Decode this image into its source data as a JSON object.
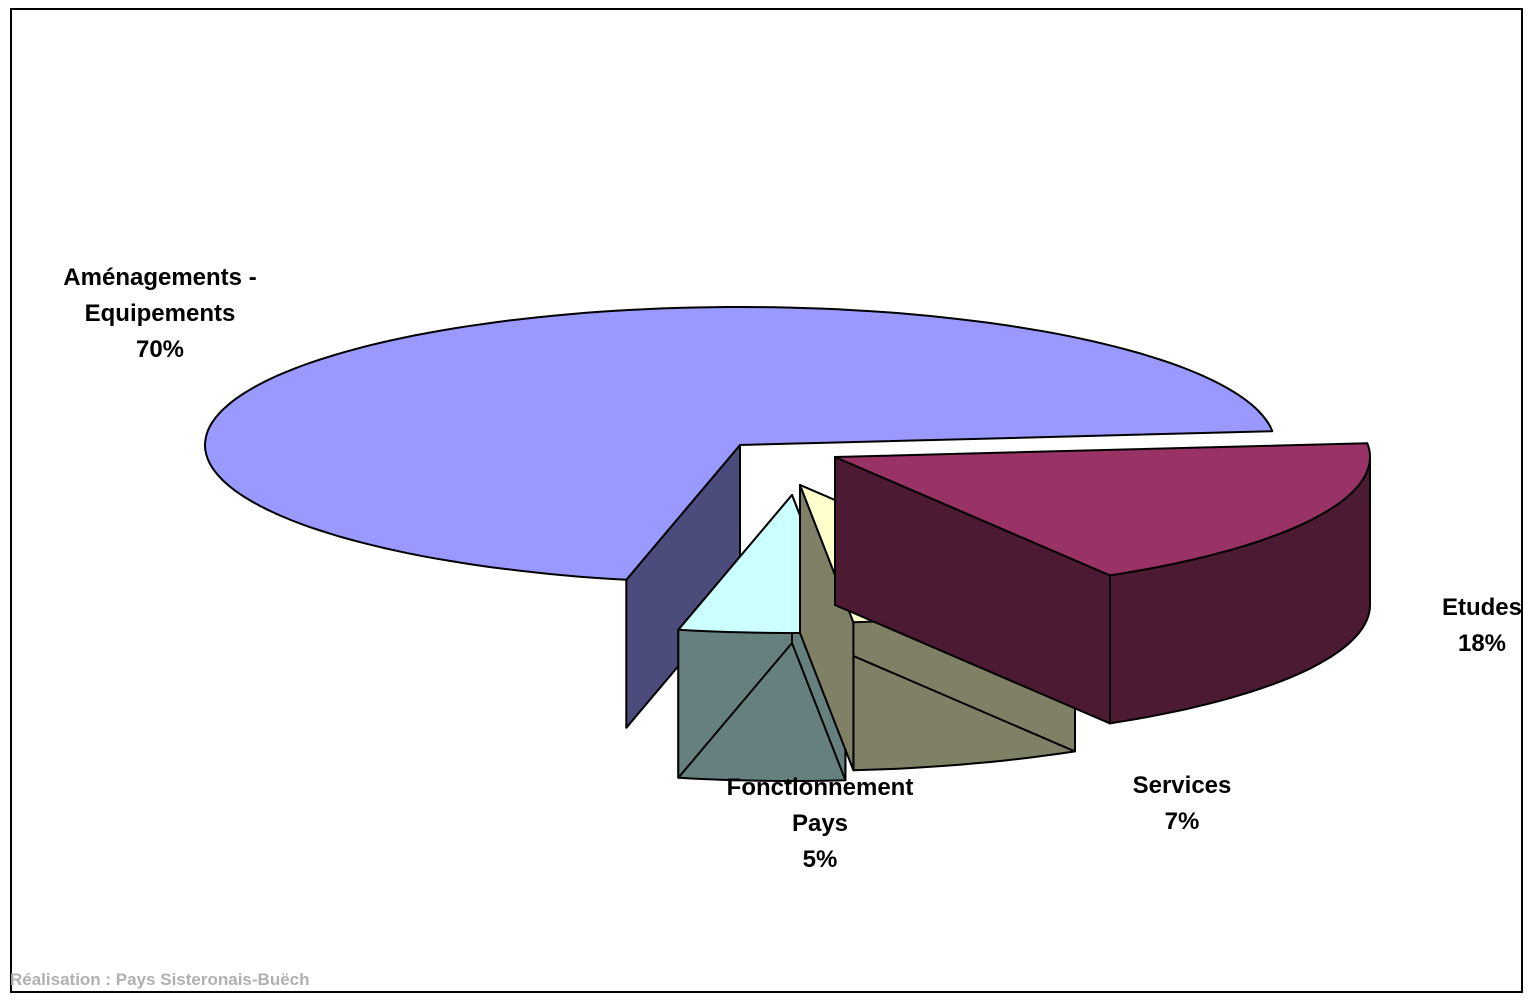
{
  "chart_data": {
    "type": "pie",
    "style": "3d-exploded",
    "slices": [
      {
        "label": "Aménagements - Equipements",
        "label_lines": [
          "Aménagements -",
          "Equipements"
        ],
        "percent_label": "70%",
        "value": 70,
        "top_color": "#9999ff",
        "side_color": "#4b4c7c"
      },
      {
        "label": "Etudes",
        "label_lines": [
          "Etudes"
        ],
        "percent_label": "18%",
        "value": 18,
        "top_color": "#993366",
        "side_color": "#4c1a33"
      },
      {
        "label": "Services",
        "label_lines": [
          "Services"
        ],
        "percent_label": "7%",
        "value": 7,
        "top_color": "#ffffcc",
        "side_color": "#808066"
      },
      {
        "label": "Fonctionnement Pays",
        "label_lines": [
          "Fonctionnement",
          "Pays"
        ],
        "percent_label": "5%",
        "value": 5,
        "top_color": "#ccffff",
        "side_color": "#668080"
      }
    ]
  },
  "credit": "Réalisation : Pays Sisteronais-Buëch"
}
